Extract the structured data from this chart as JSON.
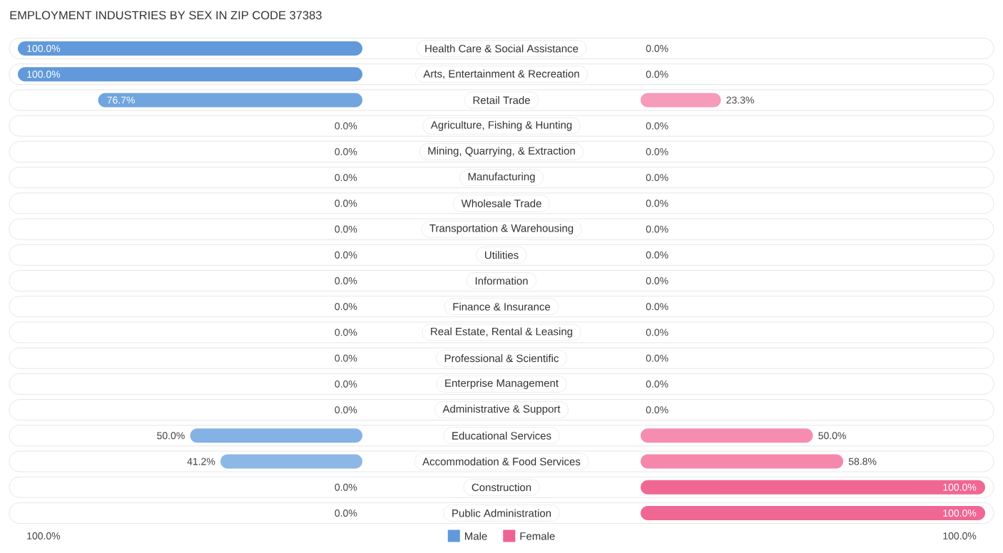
{
  "chart_data": [
    {
      "type": "bar",
      "orientation": "horizontal",
      "title": "EMPLOYMENT INDUSTRIES BY SEX IN ZIP CODE 37383",
      "categories": [
        "Health Care & Social Assistance",
        "Arts, Entertainment & Recreation",
        "Retail Trade",
        "Agriculture, Fishing & Hunting",
        "Mining, Quarrying, & Extraction",
        "Manufacturing",
        "Wholesale Trade",
        "Transportation & Warehousing",
        "Utilities",
        "Information",
        "Finance & Insurance",
        "Real Estate, Rental & Leasing",
        "Professional & Scientific",
        "Enterprise Management",
        "Administrative & Support",
        "Educational Services",
        "Accommodation & Food Services",
        "Construction",
        "Public Administration"
      ],
      "series": [
        {
          "name": "Male",
          "color": "#6199da",
          "values": [
            100,
            100,
            76.7,
            0,
            0,
            0,
            0,
            0,
            0,
            0,
            0,
            0,
            0,
            0,
            0,
            50,
            41.2,
            0,
            0
          ],
          "colors": [
            "#6199da",
            "#6199da",
            "#70a5de",
            "#a9c8ec",
            "#a9c8ec",
            "#a9c8ec",
            "#a9c8ec",
            "#a9c8ec",
            "#a9c8ec",
            "#a9c8ec",
            "#a9c8ec",
            "#a9c8ec",
            "#a9c8ec",
            "#a9c8ec",
            "#a9c8ec",
            "#85b2e4",
            "#8db7e5",
            "#a9c8ec",
            "#a9c8ec"
          ],
          "value_labels": [
            "100.0%",
            "100.0%",
            "76.7%",
            "0.0%",
            "0.0%",
            "0.0%",
            "0.0%",
            "0.0%",
            "0.0%",
            "0.0%",
            "0.0%",
            "0.0%",
            "0.0%",
            "0.0%",
            "0.0%",
            "50.0%",
            "41.2%",
            "0.0%",
            "0.0%"
          ]
        }
      ],
      "annotations": [
        "100.0%"
      ],
      "legend": "bottom",
      "tick_labels": false
    },
    {
      "type": "bar",
      "orientation": "horizontal",
      "categories": [
        "Health Care & Social Assistance",
        "Arts, Entertainment & Recreation",
        "Retail Trade",
        "Agriculture, Fishing & Hunting",
        "Mining, Quarrying, & Extraction",
        "Manufacturing",
        "Wholesale Trade",
        "Transportation & Warehousing",
        "Utilities",
        "Information",
        "Finance & Insurance",
        "Real Estate, Rental & Leasing",
        "Professional & Scientific",
        "Enterprise Management",
        "Administrative & Support",
        "Educational Services",
        "Accommodation & Food Services",
        "Construction",
        "Public Administration"
      ],
      "series": [
        {
          "name": "Female",
          "color": "#f06292",
          "values": [
            0,
            0,
            23.3,
            0,
            0,
            0,
            0,
            0,
            0,
            0,
            0,
            0,
            0,
            0,
            0,
            50,
            58.8,
            100,
            100
          ],
          "colors": [
            "#f7abc3",
            "#f7abc3",
            "#f69bb9",
            "#f7abc3",
            "#f7abc3",
            "#f7abc3",
            "#f7abc3",
            "#f7abc3",
            "#f7abc3",
            "#f7abc3",
            "#f7abc3",
            "#f7abc3",
            "#f7abc3",
            "#f7abc3",
            "#f7abc3",
            "#f68db0",
            "#f588aa",
            "#f06793",
            "#f06793"
          ],
          "value_labels": [
            "0.0%",
            "0.0%",
            "23.3%",
            "0.0%",
            "0.0%",
            "0.0%",
            "0.0%",
            "0.0%",
            "0.0%",
            "0.0%",
            "0.0%",
            "0.0%",
            "0.0%",
            "0.0%",
            "0.0%",
            "50.0%",
            "58.8%",
            "100.0%",
            "100.0%"
          ]
        }
      ],
      "annotations": [
        "100.0%"
      ],
      "legend": "bottom",
      "tick_labels": "y"
    }
  ]
}
